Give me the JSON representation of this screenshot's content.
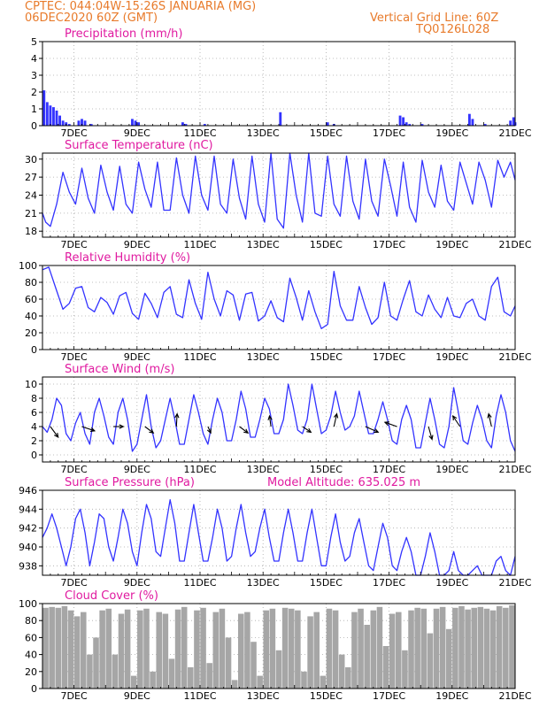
{
  "header": {
    "line1_left": "CPTEC:   044:04W-15:26S   JANUARIA (MG)",
    "line2_left": "06DEC2020 60Z (GMT)",
    "line1_right": "Vertical Grid Line: 60Z",
    "line2_right": "TQ0126L028"
  },
  "colors": {
    "title": "#e01aa0",
    "header": "#e87a2a",
    "line": "#3333ff",
    "cloud": "#a6a6a6",
    "grid": "#aaaaaa"
  },
  "x_axis": {
    "min": 0,
    "max": 15,
    "tick_labels": [
      "7DEC",
      "9DEC",
      "11DEC",
      "13DEC",
      "15DEC",
      "17DEC",
      "19DEC",
      "21DEC"
    ]
  },
  "chart_data": [
    {
      "type": "bar",
      "title": "Precipitation (mm/h)",
      "ylim": [
        0,
        5
      ],
      "yticks": [
        0,
        1,
        2,
        3,
        4,
        5
      ],
      "x": [
        0.05,
        0.15,
        0.25,
        0.35,
        0.45,
        0.55,
        0.65,
        0.75,
        0.85,
        1.15,
        1.25,
        1.35,
        1.55,
        2.85,
        2.95,
        3.05,
        4.45,
        4.55,
        5.15,
        7.55,
        9.05,
        9.25,
        11.35,
        11.45,
        11.55,
        11.65,
        12.05,
        13.55,
        13.65,
        14.05,
        14.85,
        14.95,
        15.0
      ],
      "values": [
        2.1,
        1.4,
        1.2,
        1.1,
        0.9,
        0.6,
        0.3,
        0.2,
        0.1,
        0.3,
        0.4,
        0.3,
        0.1,
        0.4,
        0.3,
        0.2,
        0.2,
        0.1,
        0.1,
        0.8,
        0.2,
        0.1,
        0.6,
        0.5,
        0.2,
        0.1,
        0.1,
        0.7,
        0.4,
        0.1,
        0.3,
        0.5,
        0.2
      ]
    },
    {
      "type": "line",
      "title": "Surface Temperature (nC)",
      "ylim": [
        17,
        31
      ],
      "yticks": [
        18,
        21,
        24,
        27,
        30
      ],
      "x": [
        0.0,
        0.1,
        0.25,
        0.45,
        0.65,
        0.85,
        1.05,
        1.25,
        1.45,
        1.65,
        1.85,
        2.05,
        2.25,
        2.45,
        2.65,
        2.85,
        3.05,
        3.25,
        3.45,
        3.65,
        3.85,
        4.05,
        4.25,
        4.45,
        4.65,
        4.85,
        5.05,
        5.25,
        5.45,
        5.65,
        5.85,
        6.05,
        6.25,
        6.45,
        6.65,
        6.85,
        7.05,
        7.25,
        7.45,
        7.65,
        7.85,
        8.05,
        8.25,
        8.45,
        8.65,
        8.85,
        9.05,
        9.25,
        9.45,
        9.65,
        9.85,
        10.05,
        10.25,
        10.45,
        10.65,
        10.85,
        11.05,
        11.25,
        11.45,
        11.65,
        11.85,
        12.05,
        12.25,
        12.45,
        12.65,
        12.85,
        13.05,
        13.25,
        13.45,
        13.65,
        13.85,
        14.05,
        14.25,
        14.45,
        14.65,
        14.85,
        15.0
      ],
      "values": [
        21.0,
        19.5,
        18.8,
        22.5,
        27.8,
        24.5,
        22.5,
        28.5,
        23.5,
        21.0,
        29.0,
        24.5,
        21.5,
        28.8,
        22.5,
        21.0,
        29.5,
        25.0,
        22.0,
        29.5,
        21.5,
        21.5,
        30.2,
        24.0,
        21.0,
        30.5,
        24.0,
        21.5,
        30.5,
        22.5,
        21.0,
        30.0,
        23.5,
        20.0,
        30.5,
        22.5,
        19.5,
        31.0,
        20.0,
        18.5,
        31.0,
        24.0,
        19.5,
        31.2,
        21.0,
        20.5,
        30.5,
        22.5,
        20.5,
        30.5,
        23.0,
        20.0,
        30.0,
        23.0,
        20.5,
        30.0,
        25.5,
        20.5,
        29.5,
        22.0,
        19.5,
        29.8,
        24.5,
        22.0,
        29.0,
        23.0,
        21.5,
        29.5,
        26.0,
        22.5,
        29.5,
        26.5,
        22.0,
        29.8,
        27.0,
        29.5,
        26.5
      ]
    },
    {
      "type": "line",
      "title": "Relative Humidity (%)",
      "ylim": [
        0,
        100
      ],
      "yticks": [
        0,
        20,
        40,
        60,
        80,
        100
      ],
      "x": [
        0.0,
        0.2,
        0.45,
        0.65,
        0.85,
        1.05,
        1.25,
        1.45,
        1.65,
        1.85,
        2.05,
        2.25,
        2.45,
        2.65,
        2.85,
        3.05,
        3.25,
        3.45,
        3.65,
        3.85,
        4.05,
        4.25,
        4.45,
        4.65,
        4.85,
        5.05,
        5.25,
        5.45,
        5.65,
        5.85,
        6.05,
        6.25,
        6.45,
        6.65,
        6.85,
        7.05,
        7.25,
        7.45,
        7.65,
        7.85,
        8.05,
        8.25,
        8.45,
        8.65,
        8.85,
        9.05,
        9.25,
        9.45,
        9.65,
        9.85,
        10.05,
        10.25,
        10.45,
        10.65,
        10.85,
        11.05,
        11.25,
        11.45,
        11.65,
        11.85,
        12.05,
        12.25,
        12.45,
        12.65,
        12.85,
        13.05,
        13.25,
        13.45,
        13.65,
        13.85,
        14.05,
        14.25,
        14.45,
        14.65,
        14.85,
        15.0
      ],
      "values": [
        95.0,
        98.0,
        70.0,
        48.0,
        55.0,
        73.0,
        75.0,
        50.0,
        45.0,
        62.0,
        56.0,
        42.0,
        64.0,
        68.0,
        43.0,
        36.0,
        67.0,
        55.0,
        38.0,
        68.0,
        75.0,
        42.0,
        38.0,
        83.0,
        55.0,
        36.0,
        92.0,
        60.0,
        40.0,
        70.0,
        65.0,
        35.0,
        66.0,
        68.0,
        34.0,
        40.0,
        58.0,
        38.0,
        33.0,
        85.0,
        62.0,
        35.0,
        70.0,
        45.0,
        25.0,
        30.0,
        93.0,
        52.0,
        35.0,
        35.0,
        75.0,
        50.0,
        30.0,
        38.0,
        80.0,
        40.0,
        35.0,
        60.0,
        82.0,
        45.0,
        40.0,
        65.0,
        48.0,
        38.0,
        62.0,
        40.0,
        38.0,
        55.0,
        60.0,
        40.0,
        35.0,
        75.0,
        86.0,
        45.0,
        40.0,
        52.0
      ]
    },
    {
      "type": "line",
      "title": "Surface Wind (m/s)",
      "ylim": [
        -1,
        11
      ],
      "yticks": [
        0,
        2,
        4,
        6,
        8,
        10
      ],
      "x": [
        0.0,
        0.15,
        0.3,
        0.45,
        0.6,
        0.75,
        0.9,
        1.05,
        1.2,
        1.35,
        1.5,
        1.65,
        1.8,
        1.95,
        2.1,
        2.25,
        2.4,
        2.55,
        2.7,
        2.85,
        3.0,
        3.15,
        3.3,
        3.45,
        3.6,
        3.75,
        3.9,
        4.05,
        4.2,
        4.35,
        4.5,
        4.65,
        4.8,
        4.95,
        5.1,
        5.25,
        5.4,
        5.55,
        5.7,
        5.85,
        6.0,
        6.15,
        6.3,
        6.45,
        6.6,
        6.75,
        6.9,
        7.05,
        7.2,
        7.35,
        7.5,
        7.65,
        7.8,
        7.95,
        8.1,
        8.25,
        8.4,
        8.55,
        8.7,
        8.85,
        9.0,
        9.15,
        9.3,
        9.45,
        9.6,
        9.75,
        9.9,
        10.05,
        10.2,
        10.35,
        10.5,
        10.65,
        10.8,
        10.95,
        11.1,
        11.25,
        11.4,
        11.55,
        11.7,
        11.85,
        12.0,
        12.15,
        12.3,
        12.45,
        12.6,
        12.75,
        12.9,
        13.05,
        13.2,
        13.35,
        13.5,
        13.65,
        13.8,
        13.95,
        14.1,
        14.25,
        14.4,
        14.55,
        14.7,
        14.85,
        15.0
      ],
      "values": [
        4.0,
        3.2,
        5.0,
        8.0,
        7.0,
        3.0,
        2.0,
        4.5,
        6.0,
        3.0,
        1.5,
        6.0,
        8.0,
        5.5,
        2.5,
        1.5,
        6.0,
        8.0,
        5.0,
        0.5,
        1.5,
        5.0,
        8.5,
        4.0,
        1.0,
        2.0,
        5.0,
        8.0,
        5.0,
        1.5,
        1.5,
        5.0,
        8.5,
        6.0,
        3.0,
        1.5,
        5.0,
        8.0,
        6.0,
        2.0,
        2.0,
        5.0,
        9.0,
        6.5,
        2.5,
        2.5,
        5.0,
        8.0,
        6.5,
        3.0,
        3.0,
        5.0,
        10.0,
        7.0,
        3.5,
        3.0,
        5.0,
        10.0,
        6.5,
        3.0,
        3.5,
        5.5,
        9.0,
        6.0,
        3.5,
        4.0,
        5.5,
        9.0,
        6.0,
        3.0,
        3.0,
        5.0,
        7.5,
        5.0,
        2.0,
        1.5,
        5.0,
        7.0,
        5.0,
        1.0,
        1.0,
        4.5,
        8.0,
        5.0,
        1.5,
        1.0,
        4.0,
        9.5,
        6.0,
        2.0,
        1.5,
        4.5,
        7.0,
        5.0,
        2.0,
        1.0,
        5.5,
        8.5,
        6.0,
        2.0,
        0.5
      ],
      "arrows": {
        "x": [
          0.25,
          1.25,
          2.25,
          3.25,
          4.25,
          5.25,
          6.25,
          7.25,
          8.25,
          9.25,
          10.25,
          11.25,
          12.25,
          13.25,
          14.25
        ],
        "u": [
          0.55,
          0.9,
          0.7,
          0.6,
          0.05,
          0.2,
          0.6,
          -0.1,
          0.6,
          0.2,
          0.9,
          -0.85,
          0.25,
          -0.5,
          -0.2
        ],
        "v": [
          -0.75,
          -0.3,
          0.0,
          -0.45,
          0.9,
          -0.45,
          -0.45,
          0.75,
          -0.4,
          0.9,
          -0.4,
          0.3,
          -0.9,
          0.75,
          0.9
        ]
      }
    },
    {
      "type": "line",
      "title": "Surface Pressure (hPa)",
      "annotation": "Model Altitude: 635.025 m",
      "ylim": [
        937,
        946
      ],
      "yticks": [
        938,
        940,
        942,
        944,
        946
      ],
      "x": [
        0.0,
        0.15,
        0.3,
        0.45,
        0.6,
        0.75,
        0.9,
        1.05,
        1.2,
        1.35,
        1.5,
        1.65,
        1.8,
        1.95,
        2.1,
        2.25,
        2.4,
        2.55,
        2.7,
        2.85,
        3.0,
        3.15,
        3.3,
        3.45,
        3.6,
        3.75,
        3.9,
        4.05,
        4.2,
        4.35,
        4.5,
        4.65,
        4.8,
        4.95,
        5.1,
        5.25,
        5.4,
        5.55,
        5.7,
        5.85,
        6.0,
        6.15,
        6.3,
        6.45,
        6.6,
        6.75,
        6.9,
        7.05,
        7.2,
        7.35,
        7.5,
        7.65,
        7.8,
        7.95,
        8.1,
        8.25,
        8.4,
        8.55,
        8.7,
        8.85,
        9.0,
        9.15,
        9.3,
        9.45,
        9.6,
        9.75,
        9.9,
        10.05,
        10.2,
        10.35,
        10.5,
        10.65,
        10.8,
        10.95,
        11.1,
        11.25,
        11.4,
        11.55,
        11.7,
        11.85,
        12.0,
        12.15,
        12.3,
        12.45,
        12.6,
        12.75,
        12.9,
        13.05,
        13.2,
        13.35,
        13.5,
        13.65,
        13.8,
        13.95,
        14.1,
        14.25,
        14.4,
        14.55,
        14.7,
        14.85,
        15.0
      ],
      "values": [
        941.0,
        942.0,
        943.5,
        942.0,
        940.0,
        938.0,
        940.0,
        943.0,
        944.0,
        941.5,
        938.0,
        940.5,
        943.5,
        943.0,
        940.0,
        938.5,
        941.0,
        944.0,
        942.5,
        939.5,
        938.0,
        941.5,
        944.5,
        943.0,
        939.5,
        939.0,
        942.0,
        945.0,
        942.5,
        938.5,
        938.5,
        941.5,
        944.5,
        941.5,
        938.5,
        938.5,
        941.0,
        944.0,
        942.0,
        938.5,
        939.0,
        942.0,
        944.5,
        941.5,
        939.0,
        939.5,
        942.0,
        944.0,
        941.0,
        938.5,
        938.5,
        941.5,
        944.0,
        941.5,
        938.5,
        938.5,
        941.5,
        944.0,
        941.0,
        938.0,
        938.0,
        941.0,
        943.5,
        940.5,
        938.5,
        939.0,
        941.5,
        943.0,
        940.5,
        938.0,
        937.5,
        940.0,
        942.5,
        941.0,
        938.0,
        937.5,
        939.5,
        941.0,
        939.5,
        936.5,
        937.0,
        939.0,
        941.5,
        939.5,
        936.5,
        936.5,
        937.5,
        939.5,
        937.5,
        936.0,
        936.5,
        937.5,
        938.0,
        937.0,
        936.5,
        937.0,
        938.5,
        939.0,
        937.5,
        936.5,
        939.0
      ]
    },
    {
      "type": "bar",
      "title": "Cloud Cover (%)",
      "ylim": [
        0,
        100
      ],
      "yticks": [
        0,
        20,
        40,
        60,
        80,
        100
      ],
      "x": [
        0.1,
        0.3,
        0.5,
        0.7,
        0.9,
        1.1,
        1.3,
        1.5,
        1.7,
        1.9,
        2.1,
        2.3,
        2.5,
        2.7,
        2.9,
        3.1,
        3.3,
        3.5,
        3.7,
        3.9,
        4.1,
        4.3,
        4.5,
        4.7,
        4.9,
        5.1,
        5.3,
        5.5,
        5.7,
        5.9,
        6.1,
        6.3,
        6.5,
        6.7,
        6.9,
        7.1,
        7.3,
        7.5,
        7.7,
        7.9,
        8.1,
        8.3,
        8.5,
        8.7,
        8.9,
        9.1,
        9.3,
        9.5,
        9.7,
        9.9,
        10.1,
        10.3,
        10.5,
        10.7,
        10.9,
        11.1,
        11.3,
        11.5,
        11.7,
        11.9,
        12.1,
        12.3,
        12.5,
        12.7,
        12.9,
        13.1,
        13.3,
        13.5,
        13.7,
        13.9,
        14.1,
        14.3,
        14.5,
        14.7,
        14.9
      ],
      "values": [
        95,
        96,
        95,
        97,
        92,
        85,
        90,
        40,
        60,
        92,
        94,
        40,
        88,
        93,
        15,
        92,
        94,
        20,
        90,
        88,
        35,
        93,
        96,
        25,
        92,
        95,
        30,
        90,
        94,
        60,
        10,
        88,
        90,
        55,
        15,
        92,
        94,
        45,
        95,
        94,
        92,
        20,
        85,
        90,
        15,
        94,
        92,
        40,
        25,
        90,
        94,
        75,
        92,
        96,
        50,
        88,
        90,
        45,
        92,
        95,
        94,
        65,
        94,
        96,
        70,
        95,
        97,
        93,
        95,
        96,
        94,
        92,
        97,
        95,
        98
      ]
    }
  ]
}
